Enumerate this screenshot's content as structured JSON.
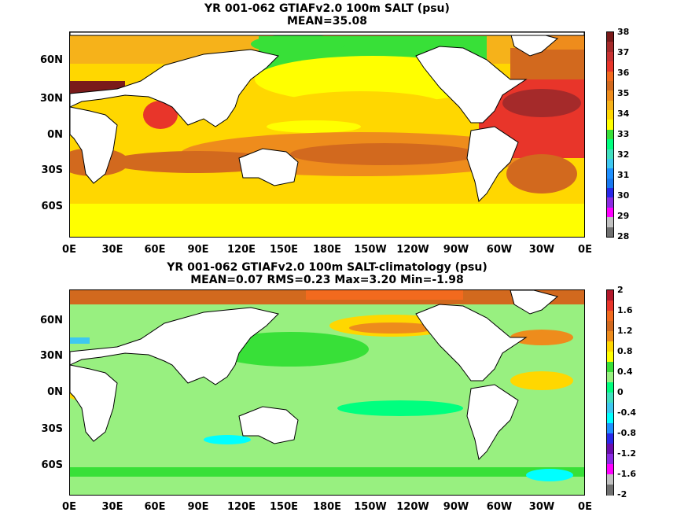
{
  "chart_data": [
    {
      "type": "heatmap",
      "title": "YR 001-062 GTIAFv2.0 100m SALT (psu)",
      "subtitle": "MEAN=35.08",
      "x_ticks": [
        "0E",
        "30E",
        "60E",
        "90E",
        "120E",
        "150E",
        "180E",
        "150W",
        "120W",
        "90W",
        "60W",
        "30W",
        "0E"
      ],
      "y_ticks": [
        "60N",
        "30N",
        "0N",
        "30S",
        "60S"
      ],
      "y_tick_values": [
        60,
        30,
        0,
        -30,
        -60
      ],
      "lat_range": [
        -85,
        85
      ],
      "lon_range": [
        0,
        360
      ],
      "colorbar": {
        "ticks": [
          "38",
          "37",
          "36",
          "35",
          "34",
          "33",
          "32",
          "31",
          "30",
          "29",
          "28"
        ],
        "colors": [
          "#7a1a1a",
          "#a52a2a",
          "#c83232",
          "#e8352a",
          "#f26a1e",
          "#d2691e",
          "#ee8c1c",
          "#f6b21a",
          "#ffd700",
          "#ffff00",
          "#38e038",
          "#00ff7f",
          "#40e0c0",
          "#3ec8f0",
          "#1e90ff",
          "#1878f0",
          "#2828e8",
          "#8a2be2",
          "#ff00ff",
          "#c0c0c0",
          "#707070"
        ]
      }
    },
    {
      "type": "heatmap",
      "title": "YR 001-062 GTIAFv2.0 100m SALT-climatology (psu)",
      "subtitle": "MEAN=0.07   RMS=0.23   Max=3.20   Min=-1.98",
      "x_ticks": [
        "0E",
        "30E",
        "60E",
        "90E",
        "120E",
        "150E",
        "180E",
        "150W",
        "120W",
        "90W",
        "60W",
        "30W",
        "0E"
      ],
      "y_ticks": [
        "60N",
        "30N",
        "0N",
        "30S",
        "60S"
      ],
      "y_tick_values": [
        60,
        30,
        0,
        -30,
        -60
      ],
      "lat_range": [
        -85,
        85
      ],
      "lon_range": [
        0,
        360
      ],
      "colorbar": {
        "ticks": [
          "2",
          "1.6",
          "1.2",
          "0.8",
          "0.4",
          "0",
          "-0.4",
          "-0.8",
          "-1.2",
          "-1.6",
          "-2"
        ],
        "colors": [
          "#b2182b",
          "#e8352a",
          "#f26a1e",
          "#d2691e",
          "#ee8c1c",
          "#ffd700",
          "#ffff00",
          "#38e038",
          "#98f080",
          "#00ff7f",
          "#40e0c0",
          "#3ec8f0",
          "#00ffff",
          "#1e90ff",
          "#2828e8",
          "#6a0dad",
          "#8a2be2",
          "#ff00ff",
          "#c0c0c0",
          "#707070"
        ]
      }
    }
  ]
}
